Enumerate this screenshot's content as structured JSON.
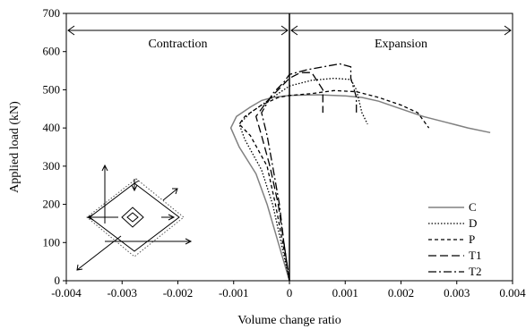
{
  "chart_data": {
    "type": "line",
    "xlabel": "Volume change ratio",
    "ylabel": "Applied load (kN)",
    "xlim": [
      -0.004,
      0.004
    ],
    "ylim": [
      0,
      700
    ],
    "xticks": [
      "-0.004",
      "-0.003",
      "-0.002",
      "-0.001",
      "0",
      "0.001",
      "0.002",
      "0.003",
      "0.004"
    ],
    "yticks": [
      "0",
      "100",
      "200",
      "300",
      "400",
      "500",
      "600",
      "700"
    ],
    "regions": {
      "left": "Contraction",
      "right": "Expansion"
    },
    "grid": false,
    "legend_position": "bottom-right",
    "series": [
      {
        "name": "C",
        "style": "solid",
        "color": "#808080",
        "points": [
          [
            0,
            0
          ],
          [
            -0.0002,
            100
          ],
          [
            -0.0004,
            200
          ],
          [
            -0.0006,
            280
          ],
          [
            -0.0009,
            350
          ],
          [
            -0.00105,
            400
          ],
          [
            -0.00095,
            430
          ],
          [
            -0.0007,
            455
          ],
          [
            -0.0005,
            472
          ],
          [
            -0.0003,
            480
          ],
          [
            0,
            485
          ],
          [
            0.0005,
            487
          ],
          [
            0.001,
            484
          ],
          [
            0.0013,
            480
          ],
          [
            0.0016,
            470
          ],
          [
            0.002,
            450
          ],
          [
            0.0024,
            430
          ],
          [
            0.0028,
            415
          ],
          [
            0.0032,
            400
          ],
          [
            0.0036,
            388
          ]
        ]
      },
      {
        "name": "D",
        "style": "dotted",
        "color": "#000000",
        "points": [
          [
            0,
            0
          ],
          [
            -0.00015,
            100
          ],
          [
            -0.0003,
            200
          ],
          [
            -0.0005,
            290
          ],
          [
            -0.0008,
            370
          ],
          [
            -0.0009,
            410
          ],
          [
            -0.0007,
            440
          ],
          [
            -0.0004,
            470
          ],
          [
            -0.0002,
            490
          ],
          [
            0,
            510
          ],
          [
            0.0004,
            525
          ],
          [
            0.0008,
            530
          ],
          [
            0.0011,
            527
          ],
          [
            0.0012,
            500
          ],
          [
            0.0013,
            440
          ],
          [
            0.0014,
            410
          ]
        ]
      },
      {
        "name": "P",
        "style": "dashed",
        "color": "#000000",
        "points": [
          [
            0,
            0
          ],
          [
            -0.00012,
            100
          ],
          [
            -0.00025,
            200
          ],
          [
            -0.0004,
            300
          ],
          [
            -0.0007,
            380
          ],
          [
            -0.0009,
            410
          ],
          [
            -0.0008,
            430
          ],
          [
            -0.0005,
            460
          ],
          [
            -0.0002,
            480
          ],
          [
            0,
            485
          ],
          [
            0.0004,
            490
          ],
          [
            0.0008,
            498
          ],
          [
            0.0012,
            495
          ],
          [
            0.0016,
            480
          ],
          [
            0.002,
            460
          ],
          [
            0.0023,
            440
          ],
          [
            0.0025,
            400
          ]
        ]
      },
      {
        "name": "T1",
        "style": "longdash",
        "color": "#000000",
        "points": [
          [
            0,
            0
          ],
          [
            -0.0001,
            100
          ],
          [
            -0.0002,
            200
          ],
          [
            -0.00035,
            300
          ],
          [
            -0.0005,
            380
          ],
          [
            -0.0006,
            430
          ],
          [
            -0.0004,
            470
          ],
          [
            -0.0002,
            500
          ],
          [
            0,
            530
          ],
          [
            0.0002,
            545
          ],
          [
            0.0004,
            545
          ],
          [
            0.0006,
            500
          ],
          [
            0.0006,
            440
          ]
        ]
      },
      {
        "name": "T2",
        "style": "dashdot",
        "color": "#000000",
        "points": [
          [
            0,
            0
          ],
          [
            -0.0001,
            100
          ],
          [
            -0.00018,
            200
          ],
          [
            -0.0003,
            300
          ],
          [
            -0.0004,
            380
          ],
          [
            -0.0005,
            440
          ],
          [
            -0.0003,
            490
          ],
          [
            -0.0001,
            520
          ],
          [
            0,
            540
          ],
          [
            0.0003,
            552
          ],
          [
            0.0006,
            560
          ],
          [
            0.0009,
            568
          ],
          [
            0.0011,
            560
          ],
          [
            0.0011,
            530
          ],
          [
            0.0012,
            480
          ],
          [
            0.0012,
            440
          ]
        ]
      }
    ]
  }
}
